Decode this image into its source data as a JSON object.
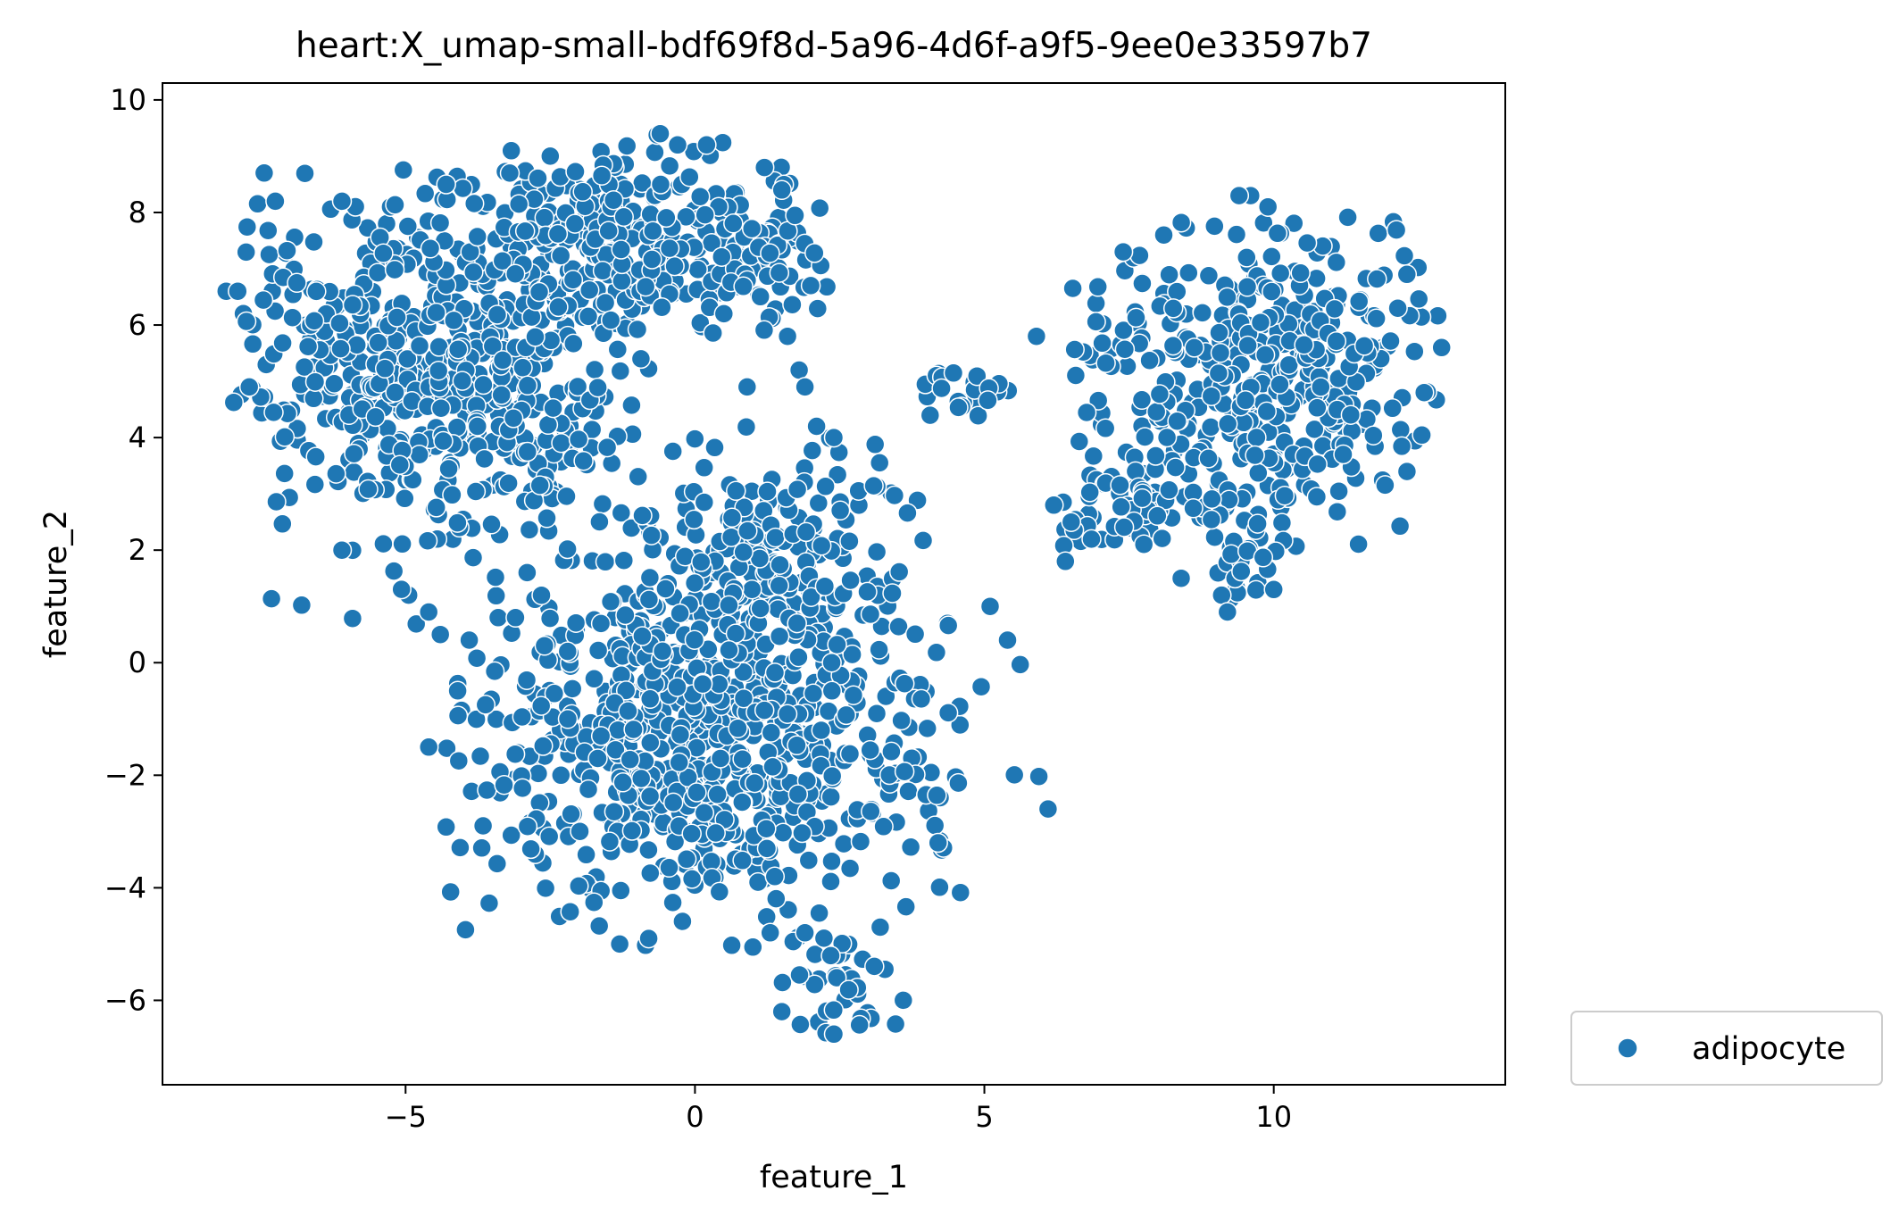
{
  "chart_data": {
    "type": "scatter",
    "title": "heart:X_umap-small-bdf69f8d-5a96-4d6f-a9f5-9ee0e33597b7",
    "xlabel": "feature_1",
    "ylabel": "feature_2",
    "xlim": [
      -9.2,
      14.0
    ],
    "ylim": [
      -7.5,
      10.3
    ],
    "xticks": [
      -5,
      0,
      5,
      10
    ],
    "yticks": [
      -6,
      -4,
      -2,
      0,
      2,
      4,
      6,
      8,
      10
    ],
    "xtick_labels": [
      "−5",
      "0",
      "5",
      "10"
    ],
    "ytick_labels": [
      "−6",
      "−4",
      "−2",
      "0",
      "2",
      "4",
      "6",
      "8",
      "10"
    ],
    "grid": false,
    "legend_position": "outside-bottom-right",
    "point_color": "#1f77b4",
    "point_edge_color": "#ffffff",
    "series": [
      {
        "name": "adipocyte",
        "clusters": [
          {
            "cx": -4.2,
            "cy": 5.2,
            "sx": 1.9,
            "sy": 1.7,
            "n": 650,
            "xr": [
              -8.1,
              -0.8
            ],
            "yr": [
              0.5,
              8.8
            ]
          },
          {
            "cx": -1.0,
            "cy": 7.6,
            "sx": 1.3,
            "sy": 0.8,
            "n": 230,
            "xr": [
              -3.4,
              2.0
            ],
            "yr": [
              5.8,
              9.4
            ]
          },
          {
            "cx": 1.6,
            "cy": 6.7,
            "sx": 0.9,
            "sy": 0.7,
            "n": 45,
            "xr": [
              0.3,
              2.3
            ],
            "yr": [
              5.7,
              8.4
            ]
          },
          {
            "cx": 0.2,
            "cy": -1.4,
            "sx": 2.0,
            "sy": 1.5,
            "n": 720,
            "xr": [
              -4.3,
              6.2
            ],
            "yr": [
              -5.1,
              1.2
            ]
          },
          {
            "cx": 1.2,
            "cy": 2.0,
            "sx": 1.4,
            "sy": 1.2,
            "n": 220,
            "xr": [
              -1.2,
              4.0
            ],
            "yr": [
              0.0,
              4.2
            ]
          },
          {
            "cx": 2.6,
            "cy": -5.8,
            "sx": 0.6,
            "sy": 0.5,
            "n": 40,
            "xr": [
              1.4,
              3.7
            ],
            "yr": [
              -6.6,
              -4.6
            ]
          },
          {
            "cx": 4.6,
            "cy": 4.8,
            "sx": 0.6,
            "sy": 0.3,
            "n": 25,
            "xr": [
              3.8,
              5.5
            ],
            "yr": [
              4.2,
              5.2
            ]
          },
          {
            "cx": 9.8,
            "cy": 5.0,
            "sx": 1.6,
            "sy": 1.5,
            "n": 420,
            "xr": [
              6.5,
              12.9
            ],
            "yr": [
              2.0,
              8.0
            ]
          },
          {
            "cx": 7.8,
            "cy": 2.6,
            "sx": 0.8,
            "sy": 0.4,
            "n": 45,
            "xr": [
              6.2,
              9.0
            ],
            "yr": [
              1.5,
              3.5
            ]
          },
          {
            "cx": 9.4,
            "cy": 1.8,
            "sx": 0.4,
            "sy": 0.4,
            "n": 22,
            "xr": [
              9.0,
              10.5
            ],
            "yr": [
              0.8,
              2.5
            ]
          }
        ],
        "outliers": [
          [
            -8.1,
            6.6
          ],
          [
            -7.9,
            6.6
          ],
          [
            -7.7,
            4.9
          ],
          [
            -6.1,
            2.0
          ],
          [
            -4.6,
            0.9
          ],
          [
            -4.4,
            0.5
          ],
          [
            -3.9,
            0.4
          ],
          [
            -3.4,
            0.8
          ],
          [
            -3.1,
            0.8
          ],
          [
            -2.9,
            1.6
          ],
          [
            -2.6,
            0.3
          ],
          [
            -2.2,
            0.2
          ],
          [
            -0.6,
            9.4
          ],
          [
            -0.3,
            9.2
          ],
          [
            0.2,
            9.2
          ],
          [
            1.2,
            8.8
          ],
          [
            1.5,
            8.4
          ],
          [
            2.0,
            6.7
          ],
          [
            1.6,
            5.8
          ],
          [
            1.8,
            5.2
          ],
          [
            1.9,
            4.9
          ],
          [
            2.1,
            4.2
          ],
          [
            2.4,
            4.0
          ],
          [
            0.9,
            4.9
          ],
          [
            0.5,
            6.2
          ],
          [
            5.1,
            1.0
          ],
          [
            5.4,
            0.4
          ],
          [
            5.9,
            5.8
          ],
          [
            6.4,
            1.8
          ],
          [
            6.5,
            2.5
          ],
          [
            6.2,
            2.8
          ],
          [
            8.4,
            1.5
          ],
          [
            9.1,
            1.2
          ],
          [
            9.2,
            0.9
          ],
          [
            9.6,
            8.3
          ],
          [
            9.4,
            8.3
          ],
          [
            9.9,
            8.1
          ],
          [
            10.0,
            1.3
          ],
          [
            11.2,
            3.7
          ],
          [
            12.3,
            6.9
          ],
          [
            12.9,
            5.6
          ],
          [
            12.6,
            4.8
          ],
          [
            2.4,
            -6.6
          ],
          [
            1.5,
            -6.2
          ],
          [
            3.6,
            -6.0
          ],
          [
            1.9,
            -4.8
          ],
          [
            1.3,
            -4.8
          ],
          [
            3.2,
            -4.7
          ],
          [
            8.1,
            7.6
          ],
          [
            7.4,
            7.3
          ],
          [
            -4.3,
            8.5
          ],
          [
            -3.2,
            8.7
          ],
          [
            -2.5,
            9.0
          ],
          [
            -6.1,
            8.2
          ],
          [
            -4.1,
            -0.5
          ],
          [
            -4.6,
            -1.5
          ],
          [
            6.1,
            -2.6
          ],
          [
            4.2,
            -3.2
          ],
          [
            -1.3,
            -5.0
          ],
          [
            -0.8,
            -4.9
          ]
        ]
      }
    ]
  }
}
